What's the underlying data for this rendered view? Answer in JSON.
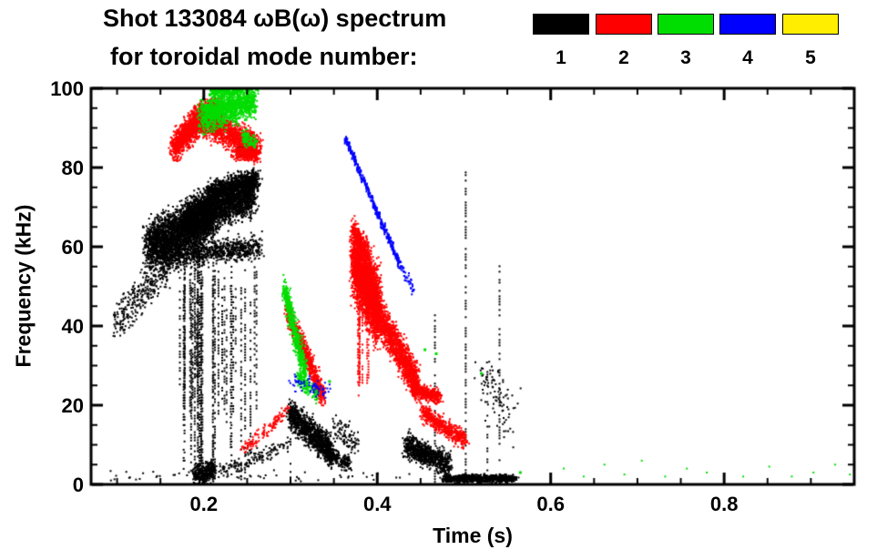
{
  "header": {
    "title_line1": "Shot 133084 ωB(ω) spectrum",
    "title_line2": "for toroidal mode number:"
  },
  "legend": {
    "items": [
      {
        "label": "1",
        "color": "#000000"
      },
      {
        "label": "2",
        "color": "#ff0000"
      },
      {
        "label": "3",
        "color": "#00dd00"
      },
      {
        "label": "4",
        "color": "#0000ff"
      },
      {
        "label": "5",
        "color": "#ffee00"
      }
    ]
  },
  "chart_data": {
    "type": "scatter",
    "title": "Shot 133084 ωB(ω) spectrum for toroidal mode number: 1 2 3 4 5",
    "xlabel": "Time (s)",
    "ylabel": "Frequency (kHz)",
    "xlim": [
      0.07,
      0.95
    ],
    "ylim": [
      0,
      100
    ],
    "grid": false,
    "legend_position": "top-right",
    "xticks": {
      "values": [
        0.2,
        0.4,
        0.6,
        0.8
      ],
      "labels": [
        "0.2",
        "0.4",
        "0.6",
        "0.8"
      ],
      "minor_step": 0.05
    },
    "yticks": {
      "values": [
        0,
        20,
        40,
        60,
        80,
        100
      ],
      "labels": [
        "0",
        "20",
        "40",
        "60",
        "80",
        "100"
      ],
      "minor_step": 5
    },
    "series": [
      {
        "name": "n=1",
        "color": "#000000",
        "clusters": [
          {
            "kind": "band",
            "t": [
              0.098,
              0.158
            ],
            "f": [
              41,
              54
            ],
            "jt": 0.006,
            "jf": 4.5,
            "n": 300
          },
          {
            "kind": "band",
            "t": [
              0.135,
              0.21
            ],
            "f": [
              60,
              68
            ],
            "jt": 0.008,
            "jf": 6,
            "n": 2600
          },
          {
            "kind": "band",
            "t": [
              0.178,
              0.258
            ],
            "f": [
              66,
              74
            ],
            "jt": 0.008,
            "jf": 5,
            "n": 2600
          },
          {
            "kind": "band",
            "t": [
              0.205,
              0.262
            ],
            "f": [
              74,
              77
            ],
            "jt": 0.006,
            "jf": 2.5,
            "n": 700
          },
          {
            "kind": "band",
            "t": [
              0.148,
              0.265
            ],
            "f": [
              57,
              60
            ],
            "jt": 0.006,
            "jf": 3,
            "n": 900
          },
          {
            "kind": "band",
            "t": [
              0.24,
              0.258
            ],
            "f": [
              84,
              85
            ],
            "jt": 0.004,
            "jf": 1.5,
            "n": 110
          },
          {
            "kind": "vstreaks",
            "t": [
              0.168,
              0.265
            ],
            "ftop": [
              45,
              62
            ],
            "fbot": [
              0,
              28
            ],
            "m": 26,
            "p": 0.5
          },
          {
            "kind": "vstreaks",
            "t": [
              0.185,
              0.215
            ],
            "ftop": [
              50,
              60
            ],
            "fbot": [
              0,
              4
            ],
            "m": 10,
            "p": 0.65
          },
          {
            "kind": "band",
            "t": [
              0.188,
              0.212
            ],
            "f": [
              2,
              4
            ],
            "jt": 0.004,
            "jf": 2.5,
            "n": 320
          },
          {
            "kind": "band",
            "t": [
              0.215,
              0.298
            ],
            "f": [
              3,
              10
            ],
            "jt": 0.006,
            "jf": 2,
            "n": 150
          },
          {
            "kind": "band",
            "t": [
              0.298,
              0.348
            ],
            "f": [
              18,
              8
            ],
            "jt": 0.005,
            "jf": 3.5,
            "n": 1100
          },
          {
            "kind": "band",
            "t": [
              0.34,
              0.368
            ],
            "f": [
              8,
              5
            ],
            "jt": 0.004,
            "jf": 2,
            "n": 200
          },
          {
            "kind": "vstreak",
            "t": 0.3,
            "f": [
              0,
              22
            ],
            "p": 0.4
          },
          {
            "kind": "band",
            "t": [
              0.352,
              0.378
            ],
            "f": [
              15,
              10
            ],
            "jt": 0.005,
            "jf": 3,
            "n": 90
          },
          {
            "kind": "band",
            "t": [
              0.432,
              0.483
            ],
            "f": [
              10,
              5
            ],
            "jt": 0.006,
            "jf": 3,
            "n": 800
          },
          {
            "kind": "band",
            "t": [
              0.478,
              0.558
            ],
            "f": [
              1.5,
              1.5
            ],
            "jt": 0.007,
            "jf": 0.9,
            "n": 900
          },
          {
            "kind": "vstreak",
            "t": 0.4665,
            "f": [
              0,
              45
            ],
            "p": 0.5
          },
          {
            "kind": "vstreak",
            "t": 0.502,
            "f": [
              0,
              79
            ],
            "p": 0.5
          },
          {
            "kind": "vstreak",
            "t": 0.527,
            "f": [
              0,
              30
            ],
            "p": 0.45
          },
          {
            "kind": "vstreak",
            "t": 0.541,
            "f": [
              0,
              56
            ],
            "p": 0.5
          },
          {
            "kind": "band",
            "t": [
              0.515,
              0.558
            ],
            "f": [
              28,
              16
            ],
            "jt": 0.01,
            "jf": 7,
            "n": 90
          },
          {
            "kind": "band",
            "t": [
              0.09,
              0.44
            ],
            "f": [
              2,
              2
            ],
            "jt": 0,
            "jf": 1.2,
            "n": 60
          }
        ]
      },
      {
        "name": "n=2",
        "color": "#ff0000",
        "clusters": [
          {
            "kind": "band",
            "t": [
              0.165,
              0.2
            ],
            "f": [
              85,
              93
            ],
            "jt": 0.006,
            "jf": 3.5,
            "n": 1100
          },
          {
            "kind": "band",
            "t": [
              0.197,
              0.262
            ],
            "f": [
              92,
              85
            ],
            "jt": 0.007,
            "jf": 3.5,
            "n": 1300
          },
          {
            "kind": "band",
            "t": [
              0.19,
              0.22
            ],
            "f": [
              94,
              96
            ],
            "jt": 0.005,
            "jf": 2,
            "n": 300
          },
          {
            "kind": "band",
            "t": [
              0.235,
              0.262
            ],
            "f": [
              83.5,
              83
            ],
            "jt": 0.005,
            "jf": 1.5,
            "n": 220
          },
          {
            "kind": "band",
            "t": [
              0.296,
              0.338
            ],
            "f": [
              44,
              22
            ],
            "jt": 0.004,
            "jf": 3,
            "n": 800
          },
          {
            "kind": "band",
            "t": [
              0.243,
              0.298
            ],
            "f": [
              8,
              19
            ],
            "jt": 0.005,
            "jf": 1.8,
            "n": 140
          },
          {
            "kind": "band",
            "t": [
              0.372,
              0.402
            ],
            "f": [
              57,
              44
            ],
            "jt": 0.005,
            "jf": 9,
            "n": 2800
          },
          {
            "kind": "band",
            "t": [
              0.372,
              0.39
            ],
            "f": [
              64,
              58
            ],
            "jt": 0.004,
            "jf": 2.5,
            "n": 250
          },
          {
            "kind": "band",
            "t": [
              0.398,
              0.447
            ],
            "f": [
              44,
              25
            ],
            "jt": 0.005,
            "jf": 4.5,
            "n": 1500
          },
          {
            "kind": "vstreaks",
            "t": [
              0.375,
              0.402
            ],
            "ftop": [
              40,
              52
            ],
            "fbot": [
              18,
              30
            ],
            "m": 8,
            "p": 0.5
          },
          {
            "kind": "band",
            "t": [
              0.44,
              0.472
            ],
            "f": [
              24,
              22
            ],
            "jt": 0.004,
            "jf": 1.8,
            "n": 420
          },
          {
            "kind": "band",
            "t": [
              0.452,
              0.502
            ],
            "f": [
              18,
              11
            ],
            "jt": 0.005,
            "jf": 2.2,
            "n": 520
          }
        ]
      },
      {
        "name": "n=3",
        "color": "#00dd00",
        "clusters": [
          {
            "kind": "band",
            "t": [
              0.198,
              0.258
            ],
            "f": [
              93,
              97
            ],
            "jt": 0.007,
            "jf": 4,
            "n": 1400
          },
          {
            "kind": "band",
            "t": [
              0.207,
              0.242
            ],
            "f": [
              99,
              100
            ],
            "jt": 0.005,
            "jf": 1.5,
            "n": 260
          },
          {
            "kind": "band",
            "t": [
              0.245,
              0.26
            ],
            "f": [
              88,
              86
            ],
            "jt": 0.003,
            "jf": 2,
            "n": 120
          },
          {
            "kind": "band",
            "t": [
              0.293,
              0.318
            ],
            "f": [
              49,
              27
            ],
            "jt": 0.0035,
            "jf": 3.5,
            "n": 600
          },
          {
            "kind": "band",
            "t": [
              0.308,
              0.332
            ],
            "f": [
              27,
              22
            ],
            "jt": 0.004,
            "jf": 2,
            "n": 140
          },
          {
            "kind": "dots",
            "pts": [
              [
                0.345,
                26
              ],
              [
                0.455,
                34
              ],
              [
                0.468,
                33
              ],
              [
                0.52,
                28
              ],
              [
                0.565,
                3
              ]
            ],
            "size": [
              3,
              3
            ]
          },
          {
            "kind": "dots",
            "pts": [
              [
                0.615,
                4
              ],
              [
                0.638,
                2
              ],
              [
                0.662,
                5
              ],
              [
                0.685,
                2.5
              ],
              [
                0.705,
                6
              ],
              [
                0.732,
                2
              ],
              [
                0.757,
                4
              ],
              [
                0.78,
                3
              ],
              [
                0.822,
                2
              ],
              [
                0.852,
                4.5
              ],
              [
                0.878,
                2
              ],
              [
                0.903,
                3
              ],
              [
                0.928,
                5
              ],
              [
                0.945,
                2.5
              ]
            ],
            "size": [
              2,
              2
            ]
          }
        ]
      },
      {
        "name": "n=4",
        "color": "#0000ff",
        "clusters": [
          {
            "kind": "band",
            "t": [
              0.362,
              0.425
            ],
            "f": [
              88,
              56
            ],
            "jt": 0.0015,
            "jf": 1.2,
            "n": 240,
            "size": [
              2,
              3
            ]
          },
          {
            "kind": "band",
            "t": [
              0.425,
              0.443
            ],
            "f": [
              56,
              49
            ],
            "jt": 0.002,
            "jf": 1.5,
            "n": 45
          },
          {
            "kind": "band",
            "t": [
              0.3,
              0.342
            ],
            "f": [
              26,
              24
            ],
            "jt": 0.004,
            "jf": 1.8,
            "n": 70
          }
        ]
      },
      {
        "name": "n=5",
        "color": "#ffee00",
        "clusters": []
      }
    ]
  }
}
